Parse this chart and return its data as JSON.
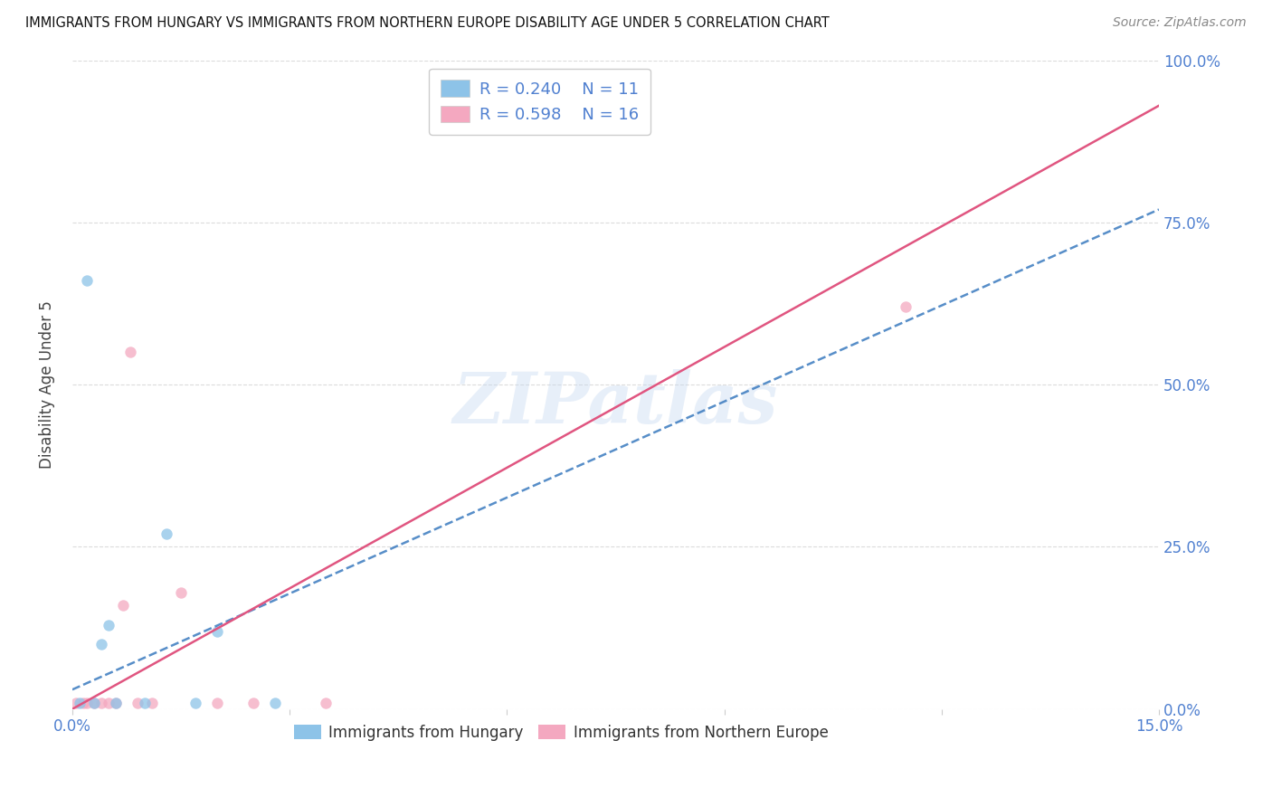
{
  "title": "IMMIGRANTS FROM HUNGARY VS IMMIGRANTS FROM NORTHERN EUROPE DISABILITY AGE UNDER 5 CORRELATION CHART",
  "source": "Source: ZipAtlas.com",
  "ylabel": "Disability Age Under 5",
  "yticks_labels": [
    "0.0%",
    "25.0%",
    "50.0%",
    "75.0%",
    "100.0%"
  ],
  "ytick_vals": [
    0,
    25,
    50,
    75,
    100
  ],
  "legend_blue_r": "R = 0.240",
  "legend_blue_n": "N = 11",
  "legend_pink_r": "R = 0.598",
  "legend_pink_n": "N = 16",
  "blue_scatter_x": [
    0.1,
    0.4,
    0.5,
    1.0,
    1.3,
    1.7,
    2.0,
    0.2,
    2.8,
    0.3,
    0.6
  ],
  "blue_scatter_y": [
    1,
    10,
    13,
    1,
    27,
    1,
    12,
    66,
    1,
    1,
    1
  ],
  "pink_scatter_x": [
    0.05,
    0.15,
    0.2,
    0.3,
    0.4,
    0.5,
    0.6,
    0.7,
    0.8,
    1.5,
    2.0,
    11.5,
    2.5,
    3.5,
    0.9,
    1.1
  ],
  "pink_scatter_y": [
    1,
    1,
    1,
    1,
    1,
    1,
    1,
    16,
    55,
    18,
    1,
    62,
    1,
    1,
    1,
    1
  ],
  "blue_line_x": [
    0,
    15
  ],
  "blue_line_y": [
    3,
    77
  ],
  "pink_line_x": [
    0,
    15
  ],
  "pink_line_y": [
    0,
    93
  ],
  "watermark_text": "ZIPatlas",
  "bg_color": "#ffffff",
  "blue_color": "#8dc3e8",
  "pink_color": "#f4a8c0",
  "blue_line_color": "#3a7abf",
  "pink_line_color": "#e05580",
  "axis_color": "#5080d0",
  "grid_color": "#d8d8d8",
  "xlim": [
    0,
    15
  ],
  "ylim": [
    0,
    100
  ],
  "xtick_positions": [
    0,
    3,
    6,
    9,
    12,
    15
  ],
  "xtick_labels": [
    "0.0%",
    "",
    "",
    "",
    "",
    "15.0%"
  ]
}
